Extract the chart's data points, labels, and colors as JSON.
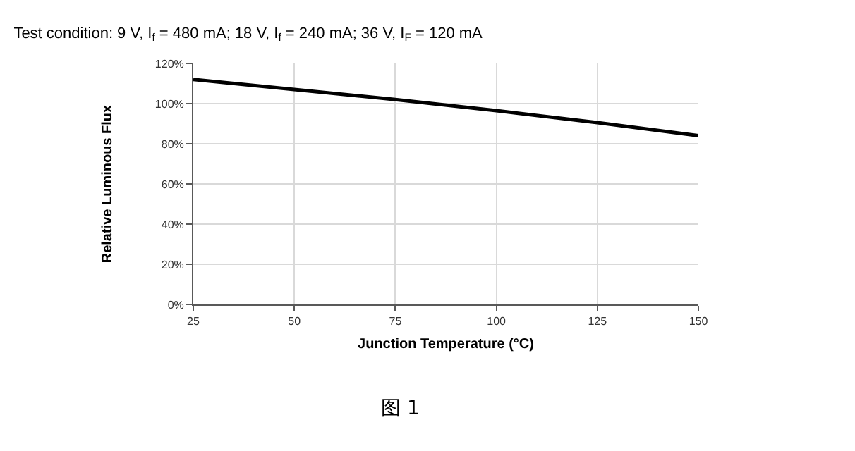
{
  "chart_data": {
    "type": "line",
    "title": "Test condition: 9 V, I$_{f}$ = 480 mA; 18 V, I$_{f}$ = 240 mA; 36 V, I$_{F}$ = 120 mA",
    "xlabel": "Junction Temperature (°C)",
    "ylabel": "Relative Luminous Flux",
    "annotations": [
      "图 1"
    ],
    "x": [
      25,
      50,
      75,
      100,
      125,
      150
    ],
    "series": [
      {
        "color": "#000000",
        "values": [
          112,
          107,
          102,
          96.5,
          90.5,
          84
        ]
      }
    ],
    "xlim": [
      25,
      150
    ],
    "xticks": [
      25,
      50,
      75,
      100,
      125,
      150
    ],
    "ylim": [
      0,
      120
    ],
    "yticks": [
      {
        "value": 0,
        "label": "0%"
      },
      {
        "value": 20,
        "label": "20%"
      },
      {
        "value": 40,
        "label": "40%"
      },
      {
        "value": 60,
        "label": "60%"
      },
      {
        "value": 80,
        "label": "80%"
      },
      {
        "value": 100,
        "label": "100%"
      },
      {
        "value": 120,
        "label": "120%"
      }
    ],
    "grid": true,
    "marker": "none",
    "line_style": "solid"
  }
}
